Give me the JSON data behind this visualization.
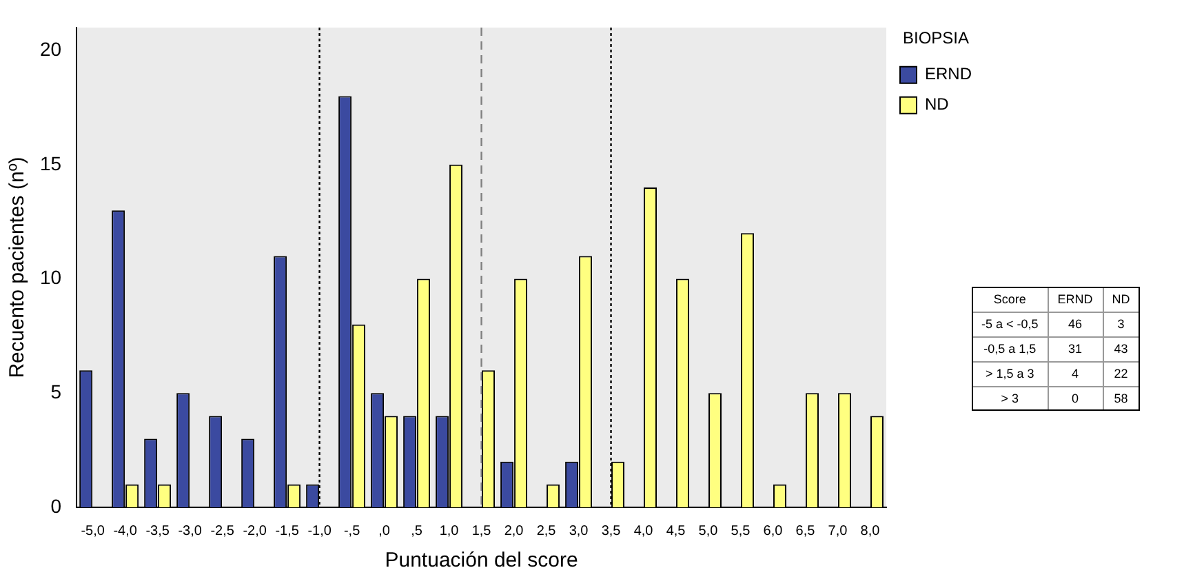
{
  "chart_data": [
    {
      "type": "bar",
      "xlabel": "Puntuación del score",
      "ylabel": "Recuento pacientes (nº)",
      "legend_title": "BIOPSIA",
      "legend": "top right",
      "categories": [
        "-5,0",
        "-4,0",
        "-3,5",
        "-3,0",
        "-2,5",
        "-2,0",
        "-1,5",
        "-1,0",
        "-,5",
        ",0",
        ",5",
        "1,0",
        "1,5",
        "2,0",
        "2,5",
        "3,0",
        "3,5",
        "4,0",
        "4,5",
        "5,0",
        "5,5",
        "6,0",
        "6,5",
        "7,0",
        "8,0"
      ],
      "series": [
        {
          "name": "ERND",
          "color": "#3b4aa0",
          "values": [
            6,
            13,
            3,
            5,
            4,
            3,
            11,
            1,
            18,
            5,
            4,
            4,
            0,
            2,
            0,
            2,
            0,
            0,
            0,
            0,
            0,
            0,
            0,
            0,
            0
          ]
        },
        {
          "name": "ND",
          "color": "#ffff80",
          "values": [
            0,
            1,
            1,
            0,
            0,
            0,
            1,
            0,
            8,
            4,
            10,
            15,
            6,
            10,
            1,
            11,
            2,
            14,
            10,
            5,
            12,
            1,
            5,
            5,
            4
          ]
        }
      ],
      "ylim": [
        0,
        21
      ],
      "yticks": [
        0,
        5,
        10,
        15,
        20
      ],
      "grid": false,
      "ref_lines": [
        {
          "axis": "x",
          "value": "-1,0",
          "color": "#000000",
          "line_style": "dotted"
        },
        {
          "axis": "x",
          "value": "1,5",
          "color": "#808080",
          "line_style": "dashed"
        },
        {
          "axis": "x",
          "value": "3,5",
          "color": "#000000",
          "line_style": "dotted"
        }
      ]
    },
    {
      "type": "heatmap",
      "annotations": [
        "Score"
      ],
      "categories": [
        "ERND",
        "ND"
      ],
      "y_categories": [
        "-5 a < -0,5",
        "-0,5 a 1,5",
        "> 1,5 a 3",
        "> 3"
      ],
      "cells": [
        [
          46,
          3
        ],
        [
          31,
          43
        ],
        [
          4,
          22
        ],
        [
          0,
          58
        ]
      ],
      "data_labels": true
    }
  ]
}
